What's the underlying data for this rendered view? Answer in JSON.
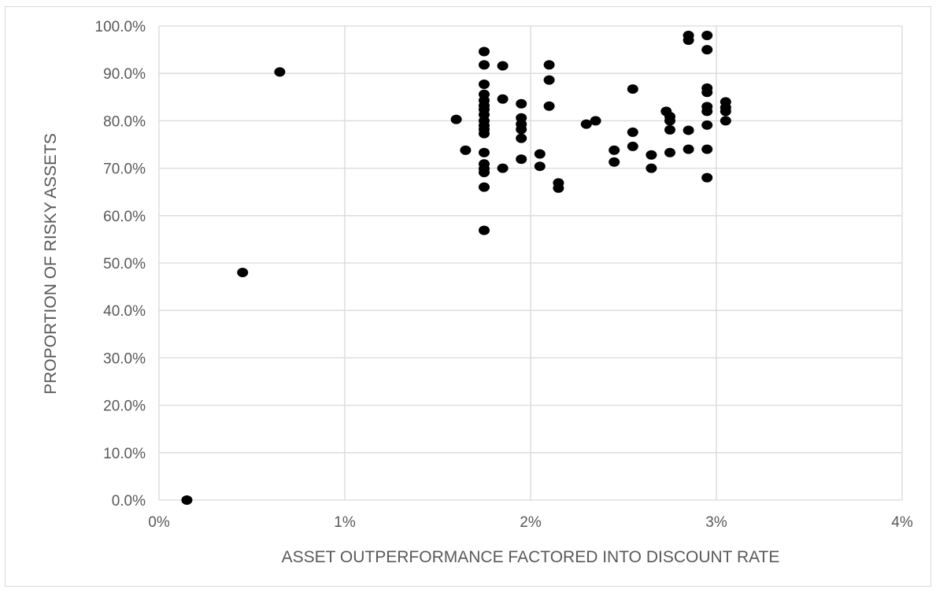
{
  "chart_data": {
    "type": "scatter",
    "title": "",
    "xlabel": "ASSET OUTPERFORMANCE FACTORED INTO DISCOUNT RATE",
    "ylabel": "PROPORTION OF RISKY ASSETS",
    "xlim": [
      0,
      4
    ],
    "ylim": [
      0,
      100
    ],
    "x_unit": "%",
    "y_unit": "%",
    "x_ticks": [
      0,
      1,
      2,
      3,
      4
    ],
    "x_tick_labels": [
      "0%",
      "1%",
      "2%",
      "3%",
      "4%"
    ],
    "y_ticks": [
      0,
      10,
      20,
      30,
      40,
      50,
      60,
      70,
      80,
      90,
      100
    ],
    "y_tick_labels": [
      "0.0%",
      "10.0%",
      "20.0%",
      "30.0%",
      "40.0%",
      "50.0%",
      "60.0%",
      "70.0%",
      "80.0%",
      "90.0%",
      "100.0%"
    ],
    "grid": true,
    "legend": "none",
    "marker_color": "#000000",
    "points": [
      [
        0.15,
        0.0
      ],
      [
        0.45,
        48.0
      ],
      [
        0.65,
        90.3
      ],
      [
        1.6,
        80.3
      ],
      [
        1.65,
        73.8
      ],
      [
        1.75,
        94.6
      ],
      [
        1.75,
        91.8
      ],
      [
        1.75,
        87.7
      ],
      [
        1.75,
        85.6
      ],
      [
        1.75,
        84.3
      ],
      [
        1.75,
        83.2
      ],
      [
        1.75,
        82.4
      ],
      [
        1.75,
        81.3
      ],
      [
        1.75,
        80.0
      ],
      [
        1.75,
        79.0
      ],
      [
        1.75,
        78.2
      ],
      [
        1.75,
        77.3
      ],
      [
        1.75,
        73.3
      ],
      [
        1.75,
        70.9
      ],
      [
        1.75,
        69.9
      ],
      [
        1.75,
        69.1
      ],
      [
        1.75,
        66.0
      ],
      [
        1.75,
        56.9
      ],
      [
        1.85,
        91.6
      ],
      [
        1.85,
        84.6
      ],
      [
        1.85,
        70.0
      ],
      [
        1.95,
        83.6
      ],
      [
        1.95,
        80.6
      ],
      [
        1.95,
        79.3
      ],
      [
        1.95,
        78.2
      ],
      [
        1.95,
        76.3
      ],
      [
        1.95,
        71.9
      ],
      [
        2.05,
        73.0
      ],
      [
        2.05,
        70.4
      ],
      [
        2.1,
        91.8
      ],
      [
        2.1,
        88.6
      ],
      [
        2.1,
        83.1
      ],
      [
        2.15,
        66.9
      ],
      [
        2.15,
        65.8
      ],
      [
        2.3,
        79.3
      ],
      [
        2.35,
        80.0
      ],
      [
        2.45,
        73.8
      ],
      [
        2.45,
        71.3
      ],
      [
        2.55,
        86.7
      ],
      [
        2.55,
        77.6
      ],
      [
        2.55,
        74.6
      ],
      [
        2.65,
        72.8
      ],
      [
        2.65,
        70.0
      ],
      [
        2.73,
        82.0
      ],
      [
        2.75,
        80.9
      ],
      [
        2.75,
        80.0
      ],
      [
        2.75,
        78.1
      ],
      [
        2.75,
        73.3
      ],
      [
        2.85,
        98.0
      ],
      [
        2.85,
        97.0
      ],
      [
        2.85,
        78.0
      ],
      [
        2.85,
        74.0
      ],
      [
        2.95,
        98.0
      ],
      [
        2.95,
        95.0
      ],
      [
        2.95,
        86.9
      ],
      [
        2.95,
        86.0
      ],
      [
        2.95,
        83.0
      ],
      [
        2.95,
        82.0
      ],
      [
        2.95,
        79.1
      ],
      [
        2.95,
        74.0
      ],
      [
        2.95,
        68.0
      ],
      [
        3.05,
        84.0
      ],
      [
        3.05,
        82.8
      ],
      [
        3.05,
        82.0
      ],
      [
        3.05,
        80.0
      ]
    ]
  }
}
